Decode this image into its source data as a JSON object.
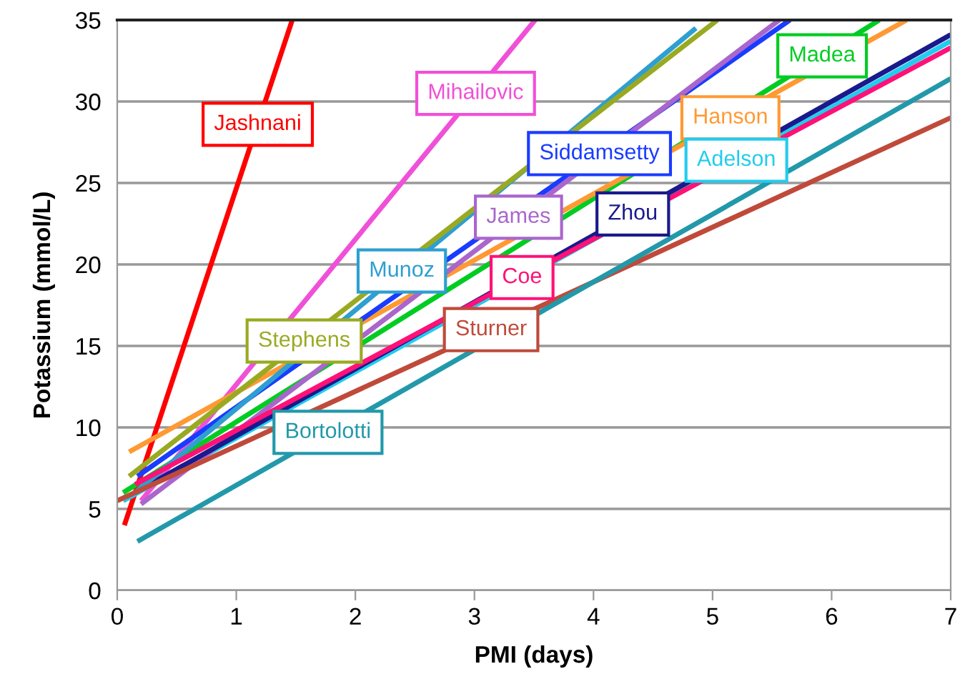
{
  "chart_data": {
    "type": "line",
    "xlabel": "PMI (days)",
    "ylabel": "Potassium (mmol/L)",
    "xlim": [
      0,
      7
    ],
    "ylim": [
      0,
      35
    ],
    "xticks": [
      0,
      1,
      2,
      3,
      4,
      5,
      6,
      7
    ],
    "yticks": [
      0,
      5,
      10,
      15,
      20,
      25,
      30,
      35
    ],
    "grid": "y",
    "legend": false,
    "marker": "none",
    "line_style": "solid",
    "series": [
      {
        "color": "#ff0000",
        "x": [
          0.06,
          1.47
        ],
        "values": [
          4,
          35
        ]
      },
      {
        "color": "#f050d8",
        "x": [
          0.2,
          3.51
        ],
        "values": [
          5.5,
          35
        ]
      },
      {
        "color": "#00cc22",
        "x": [
          0.05,
          6.4
        ],
        "values": [
          6,
          35
        ]
      },
      {
        "color": "#ff9933",
        "x": [
          0.1,
          6.63
        ],
        "values": [
          8.5,
          35
        ]
      },
      {
        "color": "#1a3cff",
        "x": [
          0.17,
          5.65
        ],
        "values": [
          7,
          35
        ]
      },
      {
        "color": "#22ccee",
        "x": [
          0.05,
          7
        ],
        "values": [
          5.5,
          33.7
        ]
      },
      {
        "color": "#aa66cc",
        "x": [
          0.2,
          5.56
        ],
        "values": [
          5.3,
          35
        ]
      },
      {
        "color": "#1a1a8c",
        "x": [
          0.15,
          7
        ],
        "values": [
          6,
          34.1
        ]
      },
      {
        "color": "#2e9fd0",
        "x": [
          0.15,
          4.86
        ],
        "values": [
          6,
          34.5
        ]
      },
      {
        "color": "#ff1177",
        "x": [
          0.15,
          7
        ],
        "values": [
          6.5,
          33.3
        ]
      },
      {
        "color": "#99aa22",
        "x": [
          0.1,
          5.04
        ],
        "values": [
          7,
          35
        ]
      },
      {
        "color": "#c04a3a",
        "x": [
          0,
          7
        ],
        "values": [
          5.5,
          29.0
        ]
      },
      {
        "color": "#2299aa",
        "x": [
          0.17,
          7
        ],
        "values": [
          3,
          31.4
        ]
      }
    ],
    "annotations": [
      {
        "text": "Jashnani",
        "x": 1.18,
        "y": 28.6
      },
      {
        "text": "Mihailovic",
        "x": 3.01,
        "y": 30.5
      },
      {
        "text": "Madea",
        "x": 5.92,
        "y": 32.8
      },
      {
        "text": "Hanson",
        "x": 5.15,
        "y": 29.0
      },
      {
        "text": "Siddamsetty",
        "x": 4.05,
        "y": 26.8
      },
      {
        "text": "Adelson",
        "x": 5.2,
        "y": 26.4
      },
      {
        "text": "James",
        "x": 3.37,
        "y": 22.9
      },
      {
        "text": "Zhou",
        "x": 4.33,
        "y": 23.1
      },
      {
        "text": "Munoz",
        "x": 2.39,
        "y": 19.6
      },
      {
        "text": "Coe",
        "x": 3.4,
        "y": 19.2
      },
      {
        "text": "Stephens",
        "x": 1.57,
        "y": 15.3
      },
      {
        "text": "Sturner",
        "x": 3.14,
        "y": 16.0
      },
      {
        "text": "Bortolotti",
        "x": 1.77,
        "y": 9.7
      }
    ]
  }
}
